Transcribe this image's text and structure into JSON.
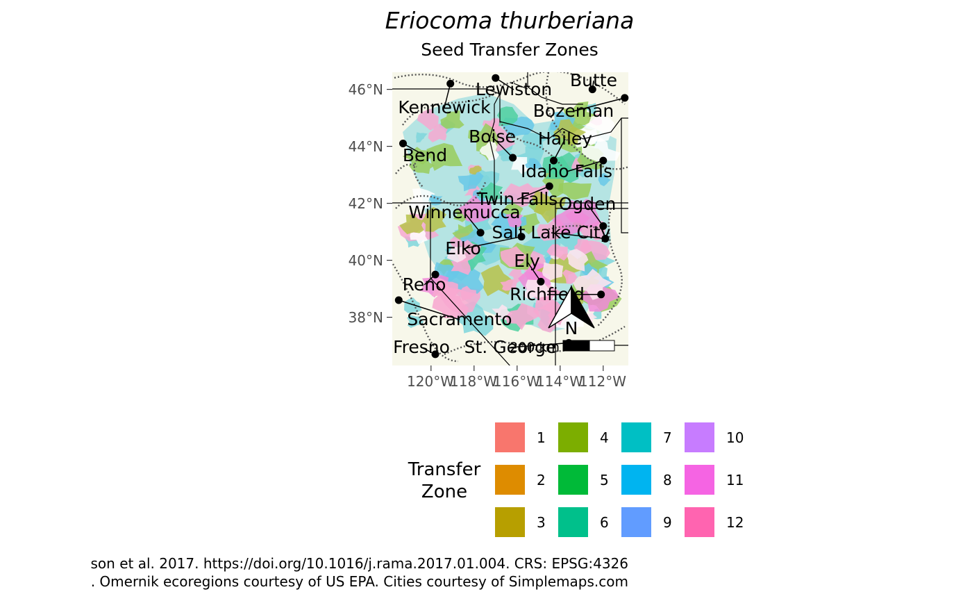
{
  "title": "Eriocoma thurberiana",
  "subtitle": "Seed Transfer Zones",
  "axes": {
    "y_ticks": [
      "46°N",
      "44°N",
      "42°N",
      "40°N",
      "38°N"
    ],
    "x_ticks": [
      "120°W",
      "118°W",
      "116°W",
      "114°W",
      "112°W"
    ]
  },
  "map": {
    "background_color": "#f7f7ea",
    "north_arrow_label": "N",
    "scale_bar_label": "200 km"
  },
  "cities": [
    {
      "name": "Lewiston",
      "lon": -117.0,
      "lat": 46.4
    },
    {
      "name": "Butte",
      "lon": -112.5,
      "lat": 46.0
    },
    {
      "name": "Kennewick",
      "lon": -119.1,
      "lat": 46.2
    },
    {
      "name": "Bozeman",
      "lon": -111.0,
      "lat": 45.7
    },
    {
      "name": "Boise",
      "lon": -116.2,
      "lat": 43.6
    },
    {
      "name": "Hailey",
      "lon": -114.3,
      "lat": 43.5
    },
    {
      "name": "Bend",
      "lon": -121.3,
      "lat": 44.1
    },
    {
      "name": "Idaho Falls",
      "lon": -112.0,
      "lat": 43.5
    },
    {
      "name": "Twin Falls",
      "lon": -114.5,
      "lat": 42.6
    },
    {
      "name": "Ogden",
      "lon": -112.0,
      "lat": 41.2
    },
    {
      "name": "Winnemucca",
      "lon": -117.7,
      "lat": 40.97
    },
    {
      "name": "Salt Lake City",
      "lon": -111.9,
      "lat": 40.76
    },
    {
      "name": "Elko",
      "lon": -115.8,
      "lat": 40.83
    },
    {
      "name": "Ely",
      "lon": -114.9,
      "lat": 39.25
    },
    {
      "name": "Reno",
      "lon": -119.8,
      "lat": 39.5
    },
    {
      "name": "Richfield",
      "lon": -112.1,
      "lat": 38.8
    },
    {
      "name": "Sacramento",
      "lon": -121.5,
      "lat": 38.6
    },
    {
      "name": "Fresno",
      "lon": -119.8,
      "lat": 36.7
    },
    {
      "name": "St. George",
      "lon": -113.6,
      "lat": 37.1
    }
  ],
  "legend": {
    "title": "Transfer Zone",
    "items": [
      {
        "label": "1",
        "color": "#F8766D"
      },
      {
        "label": "2",
        "color": "#DE8C00"
      },
      {
        "label": "3",
        "color": "#B79F00"
      },
      {
        "label": "4",
        "color": "#7CAE00"
      },
      {
        "label": "5",
        "color": "#00BA38"
      },
      {
        "label": "6",
        "color": "#00C08B"
      },
      {
        "label": "7",
        "color": "#00BFC4"
      },
      {
        "label": "8",
        "color": "#00B4F0"
      },
      {
        "label": "9",
        "color": "#619CFF"
      },
      {
        "label": "10",
        "color": "#C77CFF"
      },
      {
        "label": "11",
        "color": "#F564E3"
      },
      {
        "label": "12",
        "color": "#FF64B0"
      }
    ]
  },
  "caption": {
    "line1": "son et al. 2017. https://doi.org/10.1016/j.rama.2017.01.004. CRS: EPSG:4326",
    "line2": ". Omernik ecoregions courtesy of US EPA. Cities courtesy of Simplemaps.com"
  }
}
